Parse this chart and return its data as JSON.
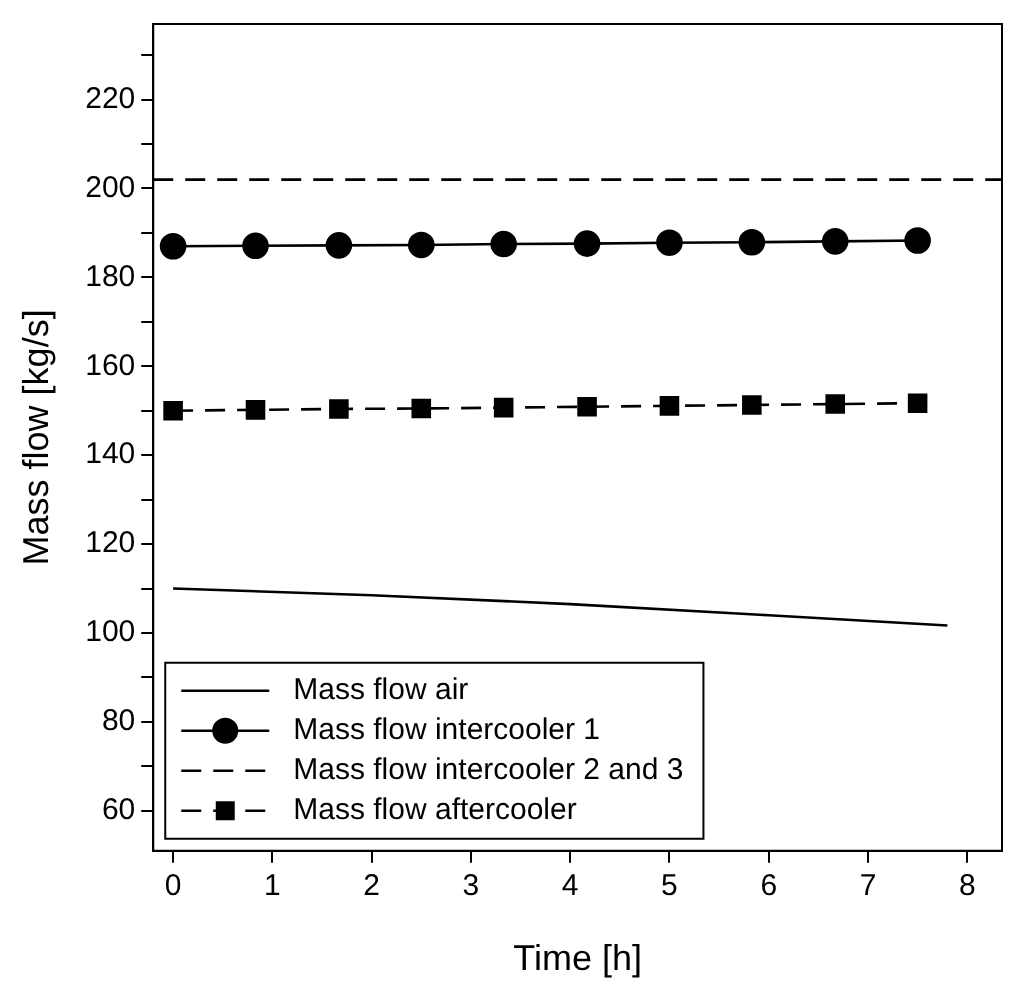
{
  "chart_data": {
    "type": "line",
    "xlabel": "Time [h]",
    "ylabel": "Mass flow [kg/s]",
    "xlim": [
      -0.2,
      8.35
    ],
    "ylim": [
      51,
      237
    ],
    "xticks": [
      0,
      1,
      2,
      3,
      4,
      5,
      6,
      7,
      8
    ],
    "yticks": [
      {
        "value": 60,
        "label": "60"
      },
      {
        "value": 70,
        "label": null
      },
      {
        "value": 80,
        "label": "80"
      },
      {
        "value": 90,
        "label": null
      },
      {
        "value": 100,
        "label": "100"
      },
      {
        "value": 110,
        "label": null
      },
      {
        "value": 120,
        "label": "120"
      },
      {
        "value": 130,
        "label": null
      },
      {
        "value": 140,
        "label": "140"
      },
      {
        "value": 150,
        "label": null
      },
      {
        "value": 160,
        "label": "160"
      },
      {
        "value": 170,
        "label": null
      },
      {
        "value": 180,
        "label": "180"
      },
      {
        "value": 190,
        "label": null
      },
      {
        "value": 200,
        "label": "200"
      },
      {
        "value": 210,
        "label": null
      },
      {
        "value": 220,
        "label": "220"
      },
      {
        "value": 230,
        "label": null
      }
    ],
    "grid": false,
    "legend": "bottom left",
    "series": [
      {
        "name": "Mass flow air",
        "color": "#000000",
        "marker": "none",
        "line_style": "solid",
        "x": [
          0,
          2,
          4,
          6,
          7.8
        ],
        "values": [
          110,
          108.5,
          106.5,
          104,
          101.7
        ]
      },
      {
        "name": "Mass flow intercooler 1",
        "color": "#000000",
        "marker": "circle",
        "line_style": "solid",
        "x": [
          0,
          0.83,
          1.67,
          2.5,
          3.33,
          4.17,
          5,
          5.83,
          6.67,
          7.5
        ],
        "values": [
          187,
          187.1,
          187.2,
          187.3,
          187.5,
          187.6,
          187.8,
          187.9,
          188.1,
          188.3
        ]
      },
      {
        "name": "Mass flow intercooler 2 and 3",
        "color": "#000000",
        "marker": "none",
        "line_style": "dashed",
        "x": [
          -0.2,
          8.35
        ],
        "values": [
          202,
          202
        ]
      },
      {
        "name": "Mass flow aftercooler",
        "color": "#000000",
        "marker": "square",
        "line_style": "dashed",
        "x": [
          0,
          0.83,
          1.67,
          2.5,
          3.33,
          4.17,
          5,
          5.83,
          6.67,
          7.5
        ],
        "values": [
          150,
          150.2,
          150.4,
          150.5,
          150.7,
          150.9,
          151.1,
          151.3,
          151.5,
          151.7
        ]
      }
    ]
  }
}
